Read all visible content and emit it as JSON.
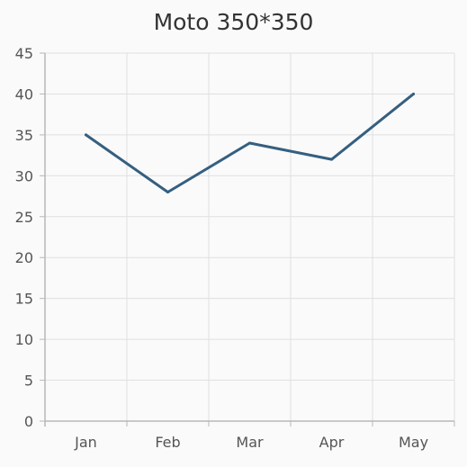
{
  "chart_data": {
    "type": "line",
    "title": "Moto 350*350",
    "xlabel": "",
    "ylabel": "",
    "categories": [
      "Jan",
      "Feb",
      "Mar",
      "Apr",
      "May"
    ],
    "series": [
      {
        "values": [
          35,
          28,
          34,
          32,
          40
        ]
      }
    ],
    "ylim": [
      0,
      45
    ],
    "yticks": [
      "0",
      "5",
      "10",
      "15",
      "20",
      "25",
      "30",
      "35",
      "40",
      "45"
    ],
    "grid": true,
    "legend": "none",
    "colors": {
      "line": "#355f80",
      "grid": "#e0e0e0",
      "axis": "#b8b8b8",
      "text": "#555555",
      "title": "#333333"
    }
  }
}
